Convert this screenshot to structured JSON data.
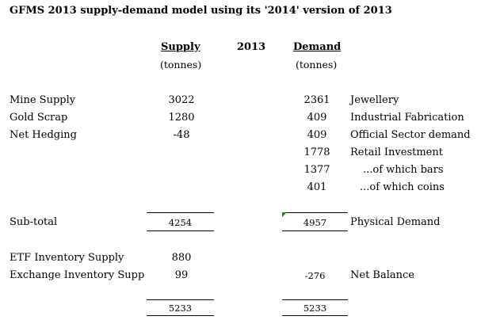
{
  "title": "GFMS 2013 supply-demand model using its '2014' version of 2013",
  "headers": {
    "supply": "Supply",
    "supply_unit": "(tonnes)",
    "year": "2013",
    "demand": "Demand",
    "demand_unit": "(tonnes)"
  },
  "supply_rows": [
    {
      "label": "Mine Supply",
      "value": "3022"
    },
    {
      "label": "Gold Scrap",
      "value": "1280"
    },
    {
      "label": "Net Hedging",
      "value": "-48"
    }
  ],
  "demand_rows": [
    {
      "value": "2361",
      "label": "Jewellery"
    },
    {
      "value": "409",
      "label": "Industrial Fabrication"
    },
    {
      "value": "409",
      "label": "Official Sector demand"
    },
    {
      "value": "1778",
      "label": "Retail Investment"
    },
    {
      "value": "1377",
      "label": "...of which bars"
    },
    {
      "value": "401",
      "label": "...of which coins"
    }
  ],
  "subtotal": {
    "label": "Sub-total",
    "supply_value": "4254",
    "demand_value": "4957",
    "demand_label": "Physical Demand"
  },
  "inventory_rows": [
    {
      "label": "ETF Inventory Supply",
      "value": "880"
    },
    {
      "label": "Exchange Inventory Supp",
      "value": "99"
    }
  ],
  "net_balance": {
    "value": "-276",
    "label": "Net Balance"
  },
  "totals": {
    "supply": "5233",
    "demand": "5233"
  }
}
